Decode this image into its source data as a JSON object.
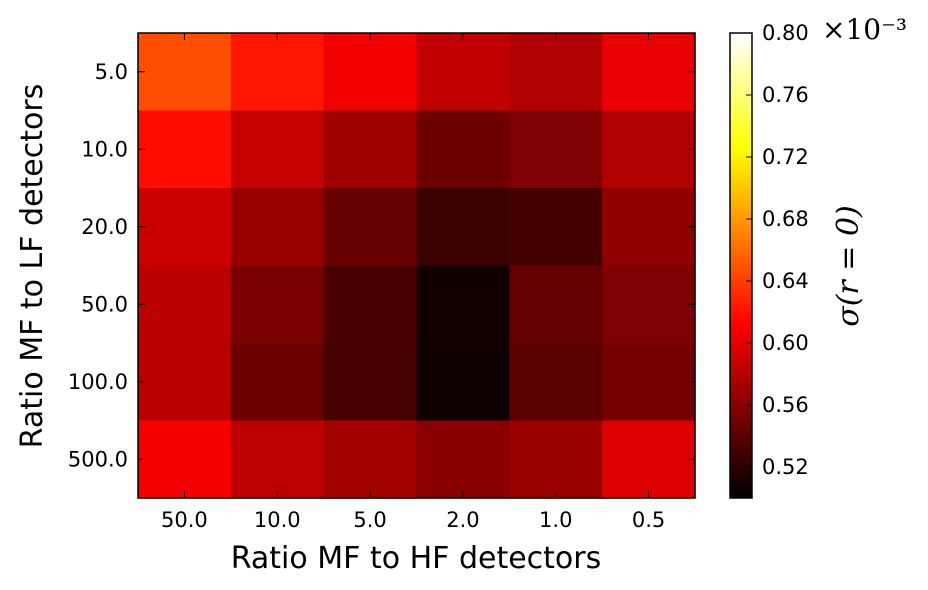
{
  "chart_data": {
    "type": "heatmap",
    "xlabel": "Ratio MF to HF detectors",
    "ylabel": "Ratio MF to LF detectors",
    "x_categories": [
      "50.0",
      "10.0",
      "5.0",
      "2.0",
      "1.0",
      "0.5"
    ],
    "y_categories": [
      "5.0",
      "10.0",
      "20.0",
      "50.0",
      "100.0",
      "500.0"
    ],
    "values": [
      [
        0.647,
        0.622,
        0.607,
        0.585,
        0.578,
        0.603
      ],
      [
        0.618,
        0.587,
        0.57,
        0.548,
        0.556,
        0.578
      ],
      [
        0.589,
        0.567,
        0.546,
        0.526,
        0.53,
        0.563
      ],
      [
        0.582,
        0.554,
        0.533,
        0.508,
        0.545,
        0.556
      ],
      [
        0.581,
        0.547,
        0.531,
        0.506,
        0.54,
        0.552
      ],
      [
        0.608,
        0.583,
        0.572,
        0.56,
        0.568,
        0.597
      ]
    ],
    "colorbar": {
      "label": "σ(r = 0)",
      "multiplier": "×10⁻³",
      "colormap": "hot",
      "vmin": 0.5,
      "vmax": 0.8,
      "ticks": [
        "0.52",
        "0.56",
        "0.60",
        "0.64",
        "0.68",
        "0.72",
        "0.76",
        "0.80"
      ]
    }
  }
}
